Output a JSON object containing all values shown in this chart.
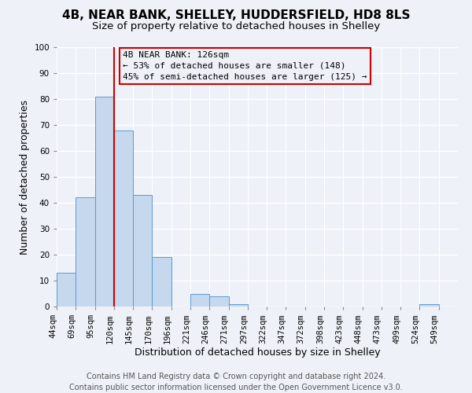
{
  "title": "4B, NEAR BANK, SHELLEY, HUDDERSFIELD, HD8 8LS",
  "subtitle": "Size of property relative to detached houses in Shelley",
  "xlabel": "Distribution of detached houses by size in Shelley",
  "ylabel": "Number of detached properties",
  "bin_labels": [
    "44sqm",
    "69sqm",
    "95sqm",
    "120sqm",
    "145sqm",
    "170sqm",
    "196sqm",
    "221sqm",
    "246sqm",
    "271sqm",
    "297sqm",
    "322sqm",
    "347sqm",
    "372sqm",
    "398sqm",
    "423sqm",
    "448sqm",
    "473sqm",
    "499sqm",
    "524sqm",
    "549sqm"
  ],
  "bar_heights": [
    13,
    42,
    81,
    68,
    43,
    19,
    0,
    5,
    4,
    1,
    0,
    0,
    0,
    0,
    0,
    0,
    0,
    0,
    0,
    1,
    0
  ],
  "bar_color": "#c5d8ed",
  "bar_edge_color": "#5b9bd5",
  "vline_x": 3,
  "vline_color": "#cc0000",
  "ylim": [
    0,
    100
  ],
  "annotation_title": "4B NEAR BANK: 126sqm",
  "annotation_line1": "← 53% of detached houses are smaller (148)",
  "annotation_line2": "45% of semi-detached houses are larger (125) →",
  "annotation_box_color": "#cc0000",
  "footer_line1": "Contains HM Land Registry data © Crown copyright and database right 2024.",
  "footer_line2": "Contains public sector information licensed under the Open Government Licence v3.0.",
  "background_color": "#eef2f8",
  "grid_color": "#ffffff",
  "title_fontsize": 11,
  "subtitle_fontsize": 9.5,
  "axis_label_fontsize": 9,
  "tick_fontsize": 7.5,
  "footer_fontsize": 7,
  "annotation_fontsize": 8
}
